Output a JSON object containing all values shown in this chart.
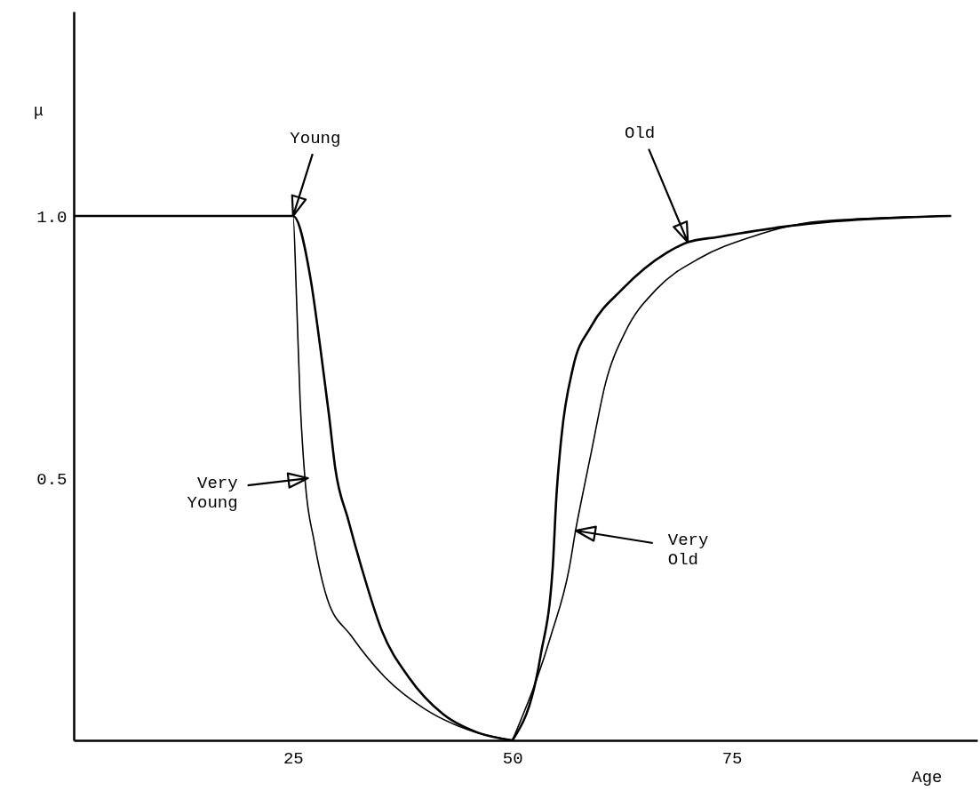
{
  "chart_data": {
    "type": "line",
    "xlabel": "Age",
    "ylabel": "μ",
    "series": [
      {
        "color": "#000000",
        "x": [
          0,
          25,
          27.0,
          28.1,
          29.1,
          29.8,
          31.3,
          32.8,
          35.1,
          38.2,
          42.1,
          46,
          50
        ],
        "values": [
          1,
          1,
          0.88,
          0.75,
          0.62,
          0.52,
          0.42,
          0.33,
          0.21,
          0.12,
          0.05,
          0.015,
          0
        ]
      },
      {
        "color": "#000000",
        "x": [
          0,
          25,
          25.4,
          25.8,
          26.4,
          27.4,
          28.9,
          31.6,
          35.5,
          40,
          45,
          50
        ],
        "values": [
          1,
          1,
          0.84,
          0.65,
          0.49,
          0.38,
          0.27,
          0.2,
          0.12,
          0.06,
          0.02,
          0
        ]
      },
      {
        "color": "#000000",
        "x": [
          50,
          53.2,
          54.6,
          55.0,
          55.6,
          56.9,
          59.0,
          62.5,
          67.6,
          70,
          73.4,
          81.1,
          86.7,
          100
        ],
        "values": [
          0,
          0.16,
          0.33,
          0.46,
          0.58,
          0.71,
          0.79,
          0.86,
          0.93,
          0.95,
          0.96,
          0.98,
          0.99,
          1
        ]
      },
      {
        "color": "#000000",
        "x": [
          50,
          54.4,
          56.5,
          57.2,
          57.9,
          59.0,
          60.6,
          62.9,
          66.4,
          71.4,
          77.2,
          85,
          100
        ],
        "values": [
          0,
          0.2,
          0.33,
          0.4,
          0.46,
          0.55,
          0.68,
          0.78,
          0.86,
          0.92,
          0.96,
          0.99,
          1
        ]
      }
    ],
    "xlim": [
      0,
      103
    ],
    "ylim": [
      0,
      1.39
    ],
    "xticks": [
      25,
      50,
      75
    ],
    "yticks": [
      0.5,
      {
        "value": 1,
        "label": "1.0"
      }
    ],
    "annotations": [
      {
        "text": "Young",
        "x": 25,
        "y": 1
      },
      {
        "text": "Old",
        "x": 70,
        "y": 0.95
      },
      {
        "text": "Very\nYoung",
        "x": 26.7,
        "y": 0.5
      },
      {
        "text": "Very\nOld",
        "x": 57.2,
        "y": 0.4
      }
    ],
    "grid": false,
    "marker": "none",
    "line_style": "solid"
  }
}
